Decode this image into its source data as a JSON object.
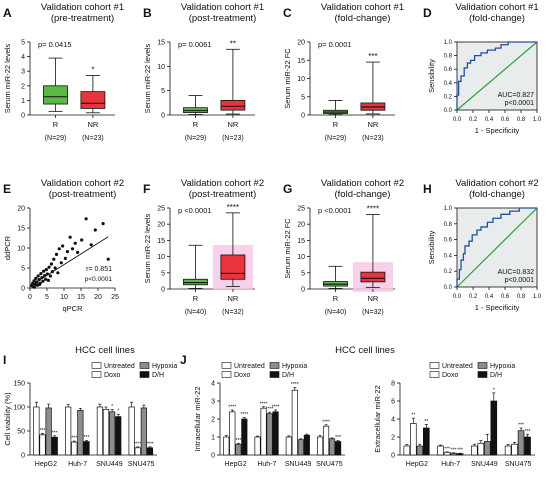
{
  "figure": {
    "panels": [
      {
        "letter": "A",
        "title": [
          "Validation cohort #1",
          "(pre-treatment)"
        ]
      },
      {
        "letter": "B",
        "title": [
          "Validation cohort #1",
          "(post-treatment)"
        ]
      },
      {
        "letter": "C",
        "title": [
          "Validation cohort #1",
          "(fold-change)"
        ]
      },
      {
        "letter": "D",
        "title": [
          "Validation cohort #1",
          "(fold-change)"
        ]
      },
      {
        "letter": "E",
        "title": [
          "Validation cohort #2",
          "(post-treatment)"
        ]
      },
      {
        "letter": "F",
        "title": [
          "Validation cohort #2",
          "(post-treatment)"
        ]
      },
      {
        "letter": "G",
        "title": [
          "Validation cohort #2",
          "(fold-change)"
        ]
      },
      {
        "letter": "H",
        "title": [
          "Validation cohort #2",
          "(fold-change)"
        ]
      },
      {
        "letter": "I",
        "title": [
          "HCC cell lines"
        ]
      },
      {
        "letter": "J",
        "title": [
          "HCC cell lines"
        ]
      }
    ]
  },
  "colors": {
    "green": "#5cb947",
    "red": "#e8353b",
    "pink": "#f6c8e6",
    "roc_curve": "#1f4fa0",
    "roc_diag": "#2e9e3a",
    "roc_bg": "#e9ecec",
    "grey_bar": "#8d8d8d",
    "black_bar": "#111111",
    "white_bar": "#ffffff"
  },
  "chart_data": [
    {
      "panel": "A",
      "type": "box",
      "title": "Validation cohort #1 (pre-treatment)",
      "ylabel": "Serum miR-22 levels",
      "ylim": [
        0,
        5
      ],
      "yticks": [
        0,
        1,
        2,
        3,
        4,
        5
      ],
      "categories": [
        "R",
        "NR"
      ],
      "n_labels": [
        "(N=29)",
        "(N=23)"
      ],
      "p_text": "p= 0.0415",
      "sig": "*",
      "boxes": [
        {
          "name": "R",
          "min": 0.25,
          "q1": 0.75,
          "median": 1.25,
          "q3": 2.0,
          "max": 3.9,
          "color": "green"
        },
        {
          "name": "NR",
          "min": 0.15,
          "q1": 0.45,
          "median": 0.8,
          "q3": 1.6,
          "max": 2.7,
          "color": "red"
        }
      ]
    },
    {
      "panel": "B",
      "type": "box",
      "title": "Validation cohort #1 (post-treatment)",
      "ylabel": "Serum miR-22 levels",
      "ylim": [
        0,
        15
      ],
      "yticks": [
        0,
        5,
        10,
        15
      ],
      "categories": [
        "R",
        "NR"
      ],
      "n_labels": [
        "(N=29)",
        "(N=23)"
      ],
      "p_text": "p= 0.0061",
      "sig": "**",
      "boxes": [
        {
          "name": "R",
          "min": 0.1,
          "q1": 0.5,
          "median": 0.9,
          "q3": 1.5,
          "max": 4.0,
          "color": "green"
        },
        {
          "name": "NR",
          "min": 0.2,
          "q1": 1.0,
          "median": 1.8,
          "q3": 3.0,
          "max": 13.5,
          "color": "red"
        }
      ]
    },
    {
      "panel": "C",
      "type": "box",
      "title": "Validation cohort #1 (fold-change)",
      "ylabel": "Serum miR-22 FC",
      "ylim": [
        0,
        20
      ],
      "yticks": [
        0,
        5,
        10,
        15,
        20
      ],
      "categories": [
        "R",
        "NR"
      ],
      "n_labels": [
        "(N=29)",
        "(N=23)"
      ],
      "p_text": "p= 0.0001",
      "sig": "***",
      "boxes": [
        {
          "name": "R",
          "min": 0.1,
          "q1": 0.4,
          "median": 0.8,
          "q3": 1.3,
          "max": 4.0,
          "color": "green"
        },
        {
          "name": "NR",
          "min": 0.3,
          "q1": 1.3,
          "median": 2.2,
          "q3": 3.3,
          "max": 14.5,
          "color": "red"
        }
      ]
    },
    {
      "panel": "D",
      "type": "line",
      "title": "Validation cohort #1 (fold-change)",
      "xlabel": "1 - Specificity",
      "ylabel": "Sensibility",
      "xlim": [
        0,
        1
      ],
      "ylim": [
        0,
        1
      ],
      "xticks": [
        0,
        0.2,
        0.4,
        0.6,
        0.8,
        1.0
      ],
      "yticks": [
        0,
        0.2,
        0.4,
        0.6,
        0.8,
        1.0
      ],
      "auc_text": "AUC=0.827",
      "p_text": "p<0.0001",
      "roc": [
        [
          0,
          0
        ],
        [
          0,
          0.22
        ],
        [
          0.02,
          0.22
        ],
        [
          0.02,
          0.42
        ],
        [
          0.05,
          0.42
        ],
        [
          0.05,
          0.5
        ],
        [
          0.09,
          0.5
        ],
        [
          0.09,
          0.62
        ],
        [
          0.13,
          0.62
        ],
        [
          0.13,
          0.69
        ],
        [
          0.17,
          0.69
        ],
        [
          0.17,
          0.73
        ],
        [
          0.22,
          0.73
        ],
        [
          0.22,
          0.8
        ],
        [
          0.3,
          0.8
        ],
        [
          0.3,
          0.84
        ],
        [
          0.38,
          0.84
        ],
        [
          0.38,
          0.88
        ],
        [
          0.48,
          0.88
        ],
        [
          0.48,
          0.91
        ],
        [
          0.55,
          0.91
        ],
        [
          0.55,
          0.96
        ],
        [
          0.64,
          0.96
        ],
        [
          0.64,
          1.0
        ],
        [
          1.0,
          1.0
        ]
      ]
    },
    {
      "panel": "E",
      "type": "scatter",
      "title": "Validation cohort #2 (post-treatment)",
      "xlabel": "qPCR",
      "ylabel": "ddPCR",
      "xlim": [
        0,
        25
      ],
      "ylim": [
        0,
        20
      ],
      "xticks": [
        0,
        5,
        10,
        15,
        20,
        25
      ],
      "yticks": [
        0,
        5,
        10,
        15,
        20
      ],
      "r_text": "r= 0.851",
      "p_text": "p<0.0001",
      "fit": [
        [
          0,
          0.5
        ],
        [
          23,
          12.8
        ]
      ],
      "points": [
        [
          0.5,
          0.6
        ],
        [
          0.8,
          1.2
        ],
        [
          1.0,
          0.3
        ],
        [
          1.2,
          1.8
        ],
        [
          1.5,
          0.9
        ],
        [
          1.7,
          2.4
        ],
        [
          2.0,
          1.5
        ],
        [
          2.2,
          0.7
        ],
        [
          2.4,
          3.0
        ],
        [
          2.7,
          2.1
        ],
        [
          3.0,
          1.2
        ],
        [
          3.2,
          3.6
        ],
        [
          3.5,
          2.6
        ],
        [
          3.8,
          1.7
        ],
        [
          4.0,
          4.2
        ],
        [
          4.3,
          3.1
        ],
        [
          4.6,
          2.2
        ],
        [
          4.8,
          4.6
        ],
        [
          5.1,
          3.5
        ],
        [
          5.4,
          1.9
        ],
        [
          5.6,
          5.2
        ],
        [
          6.0,
          3.0
        ],
        [
          6.3,
          6.0
        ],
        [
          6.6,
          4.1
        ],
        [
          7.0,
          7.2
        ],
        [
          7.4,
          5.0
        ],
        [
          7.8,
          8.4
        ],
        [
          8.2,
          3.8
        ],
        [
          8.6,
          9.8
        ],
        [
          9.2,
          6.3
        ],
        [
          9.6,
          10.5
        ],
        [
          10.4,
          7.4
        ],
        [
          11.0,
          9.1
        ],
        [
          11.8,
          12.7
        ],
        [
          12.5,
          9.8
        ],
        [
          13.3,
          11.2
        ],
        [
          14.0,
          8.9
        ],
        [
          15.2,
          12.0
        ],
        [
          16.5,
          17.3
        ],
        [
          18.0,
          10.8
        ],
        [
          19.2,
          14.5
        ],
        [
          21.5,
          16.1
        ],
        [
          23.0,
          7.2
        ],
        [
          1.3,
          0.2
        ],
        [
          2.8,
          0.9
        ]
      ]
    },
    {
      "panel": "F",
      "type": "box",
      "title": "Validation cohort #2 (post-treatment)",
      "ylabel": "Serum miR-22 levels",
      "ylim": [
        0,
        25
      ],
      "yticks": [
        0,
        5,
        10,
        15,
        20,
        25
      ],
      "categories": [
        "R",
        "NR"
      ],
      "n_labels": [
        "(N=40)",
        "(N=32)"
      ],
      "p_text": "p <0.0001",
      "sig": "****",
      "boxes": [
        {
          "name": "R",
          "min": 0.2,
          "q1": 1.3,
          "median": 2.0,
          "q3": 3.0,
          "max": 13.5,
          "color": "green"
        },
        {
          "name": "NR",
          "min": 0.8,
          "q1": 3.0,
          "median": 4.8,
          "q3": 10.5,
          "max": 23.5,
          "color": "red",
          "halo": true
        }
      ]
    },
    {
      "panel": "G",
      "type": "box",
      "title": "Validation cohort #2 (fold-change)",
      "ylabel": "Serum miR-22 FC",
      "ylim": [
        0,
        25
      ],
      "yticks": [
        0,
        5,
        10,
        15,
        20,
        25
      ],
      "categories": [
        "R",
        "NR"
      ],
      "n_labels": [
        "(N=40)",
        "(N=32)"
      ],
      "p_text": "p <0.0001",
      "sig": "****",
      "boxes": [
        {
          "name": "R",
          "min": 0.2,
          "q1": 0.9,
          "median": 1.5,
          "q3": 2.3,
          "max": 7.0,
          "color": "green"
        },
        {
          "name": "NR",
          "min": 0.5,
          "q1": 2.2,
          "median": 3.3,
          "q3": 5.2,
          "max": 23.0,
          "color": "red",
          "halo": true
        }
      ]
    },
    {
      "panel": "H",
      "type": "line",
      "title": "Validation cohort #2 (fold-change)",
      "xlabel": "1 - Specificity",
      "ylabel": "Sensibility",
      "xlim": [
        0,
        1
      ],
      "ylim": [
        0,
        1
      ],
      "xticks": [
        0,
        0.2,
        0.4,
        0.6,
        0.8,
        1.0
      ],
      "yticks": [
        0,
        0.2,
        0.4,
        0.6,
        0.8,
        1.0
      ],
      "auc_text": "AUC=0.832",
      "p_text": "p<0.0001",
      "roc": [
        [
          0,
          0
        ],
        [
          0,
          0.1
        ],
        [
          0.03,
          0.1
        ],
        [
          0.03,
          0.22
        ],
        [
          0.05,
          0.22
        ],
        [
          0.05,
          0.34
        ],
        [
          0.08,
          0.34
        ],
        [
          0.08,
          0.42
        ],
        [
          0.1,
          0.42
        ],
        [
          0.1,
          0.52
        ],
        [
          0.15,
          0.52
        ],
        [
          0.15,
          0.58
        ],
        [
          0.19,
          0.58
        ],
        [
          0.19,
          0.66
        ],
        [
          0.25,
          0.66
        ],
        [
          0.25,
          0.72
        ],
        [
          0.3,
          0.72
        ],
        [
          0.3,
          0.76
        ],
        [
          0.38,
          0.76
        ],
        [
          0.38,
          0.82
        ],
        [
          0.45,
          0.82
        ],
        [
          0.45,
          0.87
        ],
        [
          0.55,
          0.87
        ],
        [
          0.55,
          0.92
        ],
        [
          0.66,
          0.92
        ],
        [
          0.66,
          0.96
        ],
        [
          0.78,
          0.96
        ],
        [
          0.78,
          1.0
        ],
        [
          1.0,
          1.0
        ]
      ]
    },
    {
      "panel": "I",
      "type": "bar",
      "title": "HCC cell lines",
      "ylabel": "Cell viability (%)",
      "ylim": [
        0,
        150
      ],
      "yticks": [
        0,
        50,
        100,
        150
      ],
      "categories": [
        "HepG2",
        "Huh-7",
        "SNU449",
        "SNU475"
      ],
      "legend": [
        "Untreated",
        "Hypoxia",
        "Doxo",
        "D/H"
      ],
      "series": [
        {
          "name": "Untreated",
          "fill": "white_bar",
          "values": [
            100,
            100,
            100,
            100
          ],
          "errors": [
            10,
            5,
            6,
            10
          ],
          "sig": [
            "",
            "",
            "",
            ""
          ]
        },
        {
          "name": "Doxo",
          "fill": "white_bar",
          "values": [
            42,
            27,
            95,
            15
          ],
          "errors": [
            3,
            2,
            5,
            2
          ],
          "sig": [
            "***",
            "***",
            "",
            "****"
          ]
        },
        {
          "name": "Hypoxia",
          "fill": "grey_bar",
          "values": [
            98,
            93,
            90,
            98
          ],
          "errors": [
            8,
            4,
            5,
            6
          ],
          "sig": [
            "",
            "",
            "*",
            ""
          ]
        },
        {
          "name": "D/H",
          "fill": "black_bar",
          "values": [
            37,
            28,
            80,
            15
          ],
          "errors": [
            3,
            2,
            5,
            2
          ],
          "sig": [
            "***",
            "***",
            "*",
            "****"
          ]
        }
      ]
    },
    {
      "panel": "J1",
      "type": "bar",
      "ylabel": "Intracellular miR-22",
      "ylim": [
        0,
        4
      ],
      "yticks": [
        0,
        1,
        2,
        3,
        4
      ],
      "categories": [
        "HepG2",
        "Huh-7",
        "SNU449",
        "SNU475"
      ],
      "legend": [
        "Untreated",
        "Hypoxia",
        "Doxo",
        "D/H"
      ],
      "series": [
        {
          "name": "Untreated",
          "fill": "white_bar",
          "values": [
            1,
            1,
            1,
            1
          ],
          "errors": [
            0.08,
            0.05,
            0.06,
            0.08
          ],
          "sig": [
            "",
            "",
            "",
            ""
          ]
        },
        {
          "name": "Doxo",
          "fill": "white_bar",
          "values": [
            2.4,
            2.6,
            3.6,
            1.6
          ],
          "errors": [
            0.1,
            0.08,
            0.15,
            0.08
          ],
          "sig": [
            "****",
            "****",
            "****",
            "****"
          ]
        },
        {
          "name": "Hypoxia",
          "fill": "grey_bar",
          "values": [
            0.6,
            2.3,
            0.85,
            0.9
          ],
          "errors": [
            0.05,
            0.08,
            0.05,
            0.05
          ],
          "sig": [
            "***",
            "****",
            "",
            ""
          ]
        },
        {
          "name": "D/H",
          "fill": "black_bar",
          "values": [
            2.0,
            2.4,
            1.1,
            0.75
          ],
          "errors": [
            0.08,
            0.1,
            0.06,
            0.05
          ],
          "sig": [
            "****",
            "****",
            "",
            "***"
          ]
        }
      ]
    },
    {
      "panel": "J2",
      "type": "bar",
      "ylabel": "Extracellular miR-22",
      "ylim": [
        0,
        8
      ],
      "yticks": [
        0,
        2,
        4,
        6,
        8
      ],
      "categories": [
        "HepG2",
        "Huh-7",
        "SNU449",
        "SNU475"
      ],
      "legend": [
        "Untreated",
        "Hypoxia",
        "Doxo",
        "D/H"
      ],
      "series": [
        {
          "name": "Untreated",
          "fill": "white_bar",
          "values": [
            1,
            1,
            1,
            1
          ],
          "errors": [
            0.15,
            0.1,
            0.2,
            0.15
          ],
          "sig": [
            "",
            "",
            "",
            ""
          ]
        },
        {
          "name": "Doxo",
          "fill": "white_bar",
          "values": [
            3.5,
            0.3,
            1.3,
            1.2
          ],
          "errors": [
            0.6,
            0.05,
            0.3,
            0.2
          ],
          "sig": [
            "**",
            "***",
            "",
            ""
          ]
        },
        {
          "name": "Hypoxia",
          "fill": "grey_bar",
          "values": [
            1.0,
            0.2,
            1.5,
            2.7
          ],
          "errors": [
            0.2,
            0.05,
            0.8,
            0.3
          ],
          "sig": [
            "",
            "***",
            "",
            "***"
          ]
        },
        {
          "name": "D/H",
          "fill": "black_bar",
          "values": [
            3.0,
            0.15,
            6.0,
            2.0
          ],
          "errors": [
            0.4,
            0.05,
            0.9,
            0.3
          ],
          "sig": [
            "**",
            "***",
            "*",
            "***"
          ]
        }
      ]
    }
  ]
}
